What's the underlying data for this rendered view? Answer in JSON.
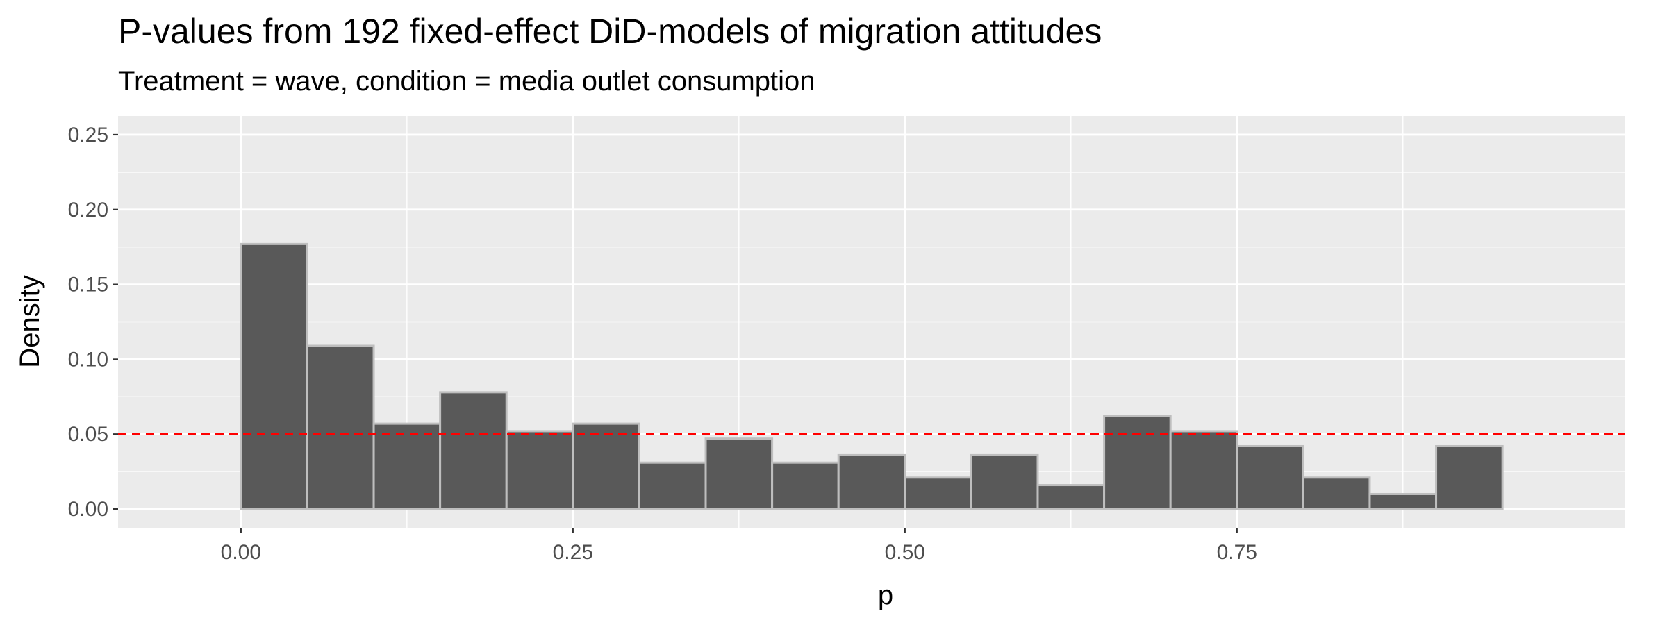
{
  "chart_data": {
    "type": "bar",
    "title": "P-values from 192 fixed-effect DiD-models of migration attitudes",
    "subtitle": "Treatment = wave, condition = media outlet consumption",
    "xlabel": "p",
    "ylabel": "Density",
    "x_ticks": [
      "0.00",
      "0.25",
      "0.50",
      "0.75"
    ],
    "y_ticks": [
      "0.00",
      "0.05",
      "0.10",
      "0.15",
      "0.20",
      "0.25"
    ],
    "xlim": [
      -0.0925,
      1.0425
    ],
    "ylim": [
      -0.0125,
      0.2625
    ],
    "bin_width": 0.05,
    "bins": [
      {
        "x0": 0.0,
        "x1": 0.05,
        "density": 0.177
      },
      {
        "x0": 0.05,
        "x1": 0.1,
        "density": 0.109
      },
      {
        "x0": 0.1,
        "x1": 0.15,
        "density": 0.057
      },
      {
        "x0": 0.15,
        "x1": 0.2,
        "density": 0.078
      },
      {
        "x0": 0.2,
        "x1": 0.25,
        "density": 0.052
      },
      {
        "x0": 0.25,
        "x1": 0.3,
        "density": 0.057
      },
      {
        "x0": 0.3,
        "x1": 0.35,
        "density": 0.031
      },
      {
        "x0": 0.35,
        "x1": 0.4,
        "density": 0.047
      },
      {
        "x0": 0.4,
        "x1": 0.45,
        "density": 0.031
      },
      {
        "x0": 0.45,
        "x1": 0.5,
        "density": 0.036
      },
      {
        "x0": 0.5,
        "x1": 0.55,
        "density": 0.021
      },
      {
        "x0": 0.55,
        "x1": 0.6,
        "density": 0.036
      },
      {
        "x0": 0.6,
        "x1": 0.65,
        "density": 0.016
      },
      {
        "x0": 0.65,
        "x1": 0.7,
        "density": 0.062
      },
      {
        "x0": 0.7,
        "x1": 0.75,
        "density": 0.052
      },
      {
        "x0": 0.75,
        "x1": 0.8,
        "density": 0.042
      },
      {
        "x0": 0.8,
        "x1": 0.85,
        "density": 0.021
      },
      {
        "x0": 0.85,
        "x1": 0.9,
        "density": 0.01
      },
      {
        "x0": 0.9,
        "x1": 0.95,
        "density": 0.042
      }
    ],
    "reference_line": {
      "y": 0.05,
      "style": "dashed",
      "color": "#ff0000"
    },
    "grid": true,
    "colors": {
      "panel_background": "#ebebeb",
      "grid_major": "#ffffff",
      "bar_fill": "#595959",
      "bar_outline": "#bebebe",
      "tick_label": "#4d4d4d"
    }
  }
}
